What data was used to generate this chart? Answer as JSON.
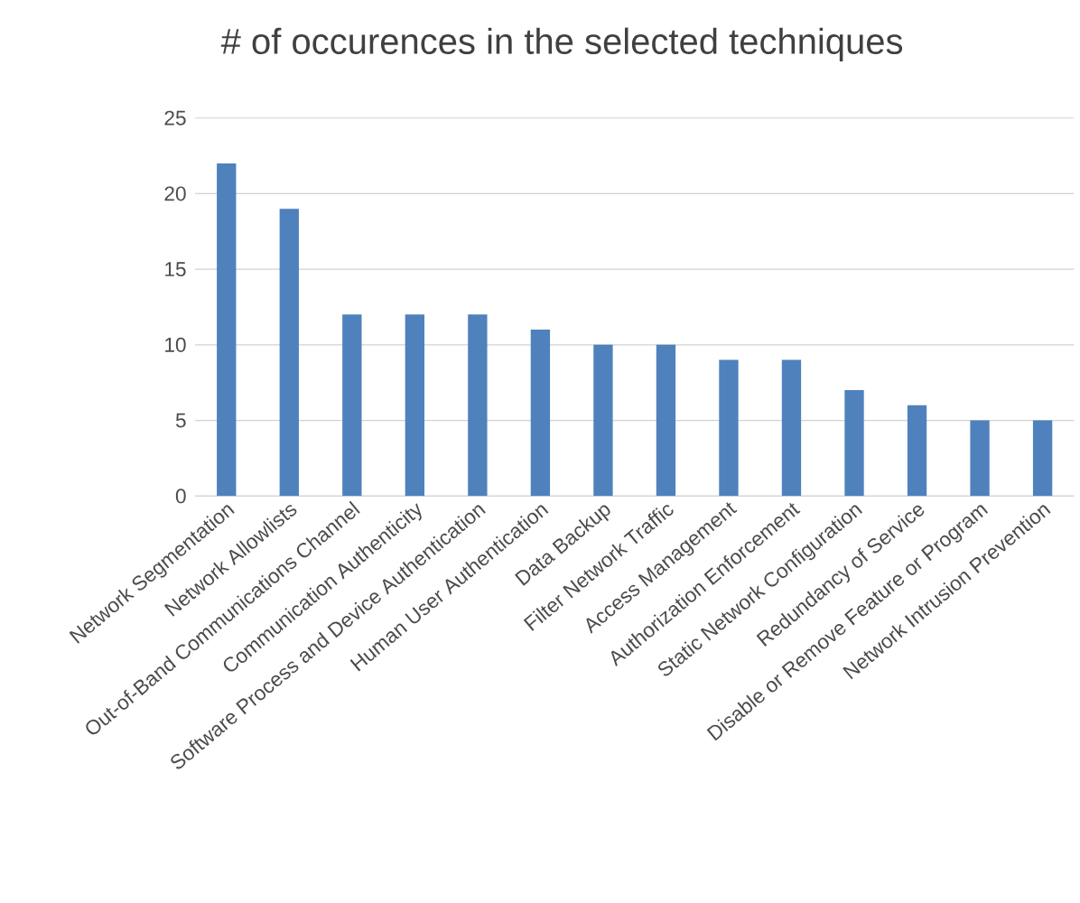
{
  "chart_data": {
    "type": "bar",
    "title": "# of occurences in the selected techniques",
    "categories": [
      "Network Segmentation",
      "Network Allowlists",
      "Out-of-Band Communications Channel",
      "Communication Authenticity",
      "Software Process and Device Authentication",
      "Human User Authentication",
      "Data Backup",
      "Filter Network Traffic",
      "Access Management",
      "Authorization Enforcement",
      "Static Network Configuration",
      "Redundancy of Service",
      "Disable or Remove Feature or Program",
      "Network Intrusion Prevention"
    ],
    "values": [
      22,
      19,
      12,
      12,
      12,
      11,
      10,
      10,
      9,
      9,
      7,
      6,
      5,
      5
    ],
    "color": "#4f81bd",
    "ylim": [
      0,
      25
    ],
    "yticks": [
      0,
      5,
      10,
      15,
      20,
      25
    ],
    "grid": "y"
  }
}
